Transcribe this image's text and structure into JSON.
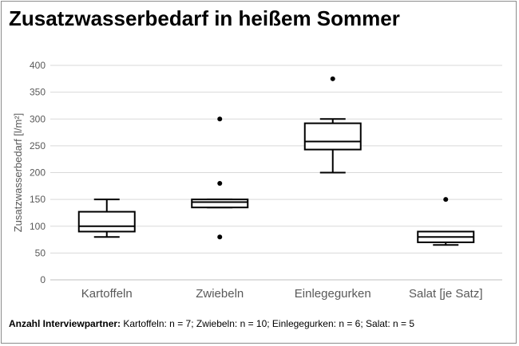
{
  "title": "Zusatzwasserbedarf in heißem Sommer",
  "footnote": {
    "label": "Anzahl Interviewpartner:",
    "text": " Kartoffeln: n = 7; Zwiebeln: n = 10; Einlegegurken: n = 6; Salat: n = 5"
  },
  "chart_data": {
    "type": "boxplot",
    "title": "Zusatzwasserbedarf in heißem Sommer",
    "xlabel": "",
    "ylabel": "Zusatzwasserbedarf [l/m²]",
    "ylim": [
      0,
      400
    ],
    "yticks": [
      0,
      50,
      100,
      150,
      200,
      250,
      300,
      350,
      400
    ],
    "ytick_labels": [
      "0",
      "50",
      "100",
      "150",
      "200",
      "250",
      "300",
      "350",
      "400"
    ],
    "grid": true,
    "categories": [
      "Kartoffeln",
      "Zwiebeln",
      "Einlegegurken",
      "Salat [je Satz]"
    ],
    "boxes": [
      {
        "category": "Kartoffeln",
        "whisker_low": 80,
        "q1": 90,
        "median": 100,
        "q3": 127,
        "whisker_high": 150,
        "outliers": []
      },
      {
        "category": "Zwiebeln",
        "whisker_low": 135,
        "q1": 135,
        "median": 145,
        "q3": 150,
        "whisker_high": 150,
        "outliers": [
          300,
          180,
          80
        ]
      },
      {
        "category": "Einlegegurken",
        "whisker_low": 200,
        "q1": 243,
        "median": 258,
        "q3": 292,
        "whisker_high": 300,
        "outliers": [
          375
        ]
      },
      {
        "category": "Salat [je Satz]",
        "whisker_low": 65,
        "q1": 70,
        "median": 80,
        "q3": 90,
        "whisker_high": 90,
        "outliers": [
          150
        ]
      }
    ],
    "colors": {
      "box": "#000000",
      "grid": "#d9d9d9",
      "axis": "#bfbfbf",
      "text": "#595959"
    }
  }
}
